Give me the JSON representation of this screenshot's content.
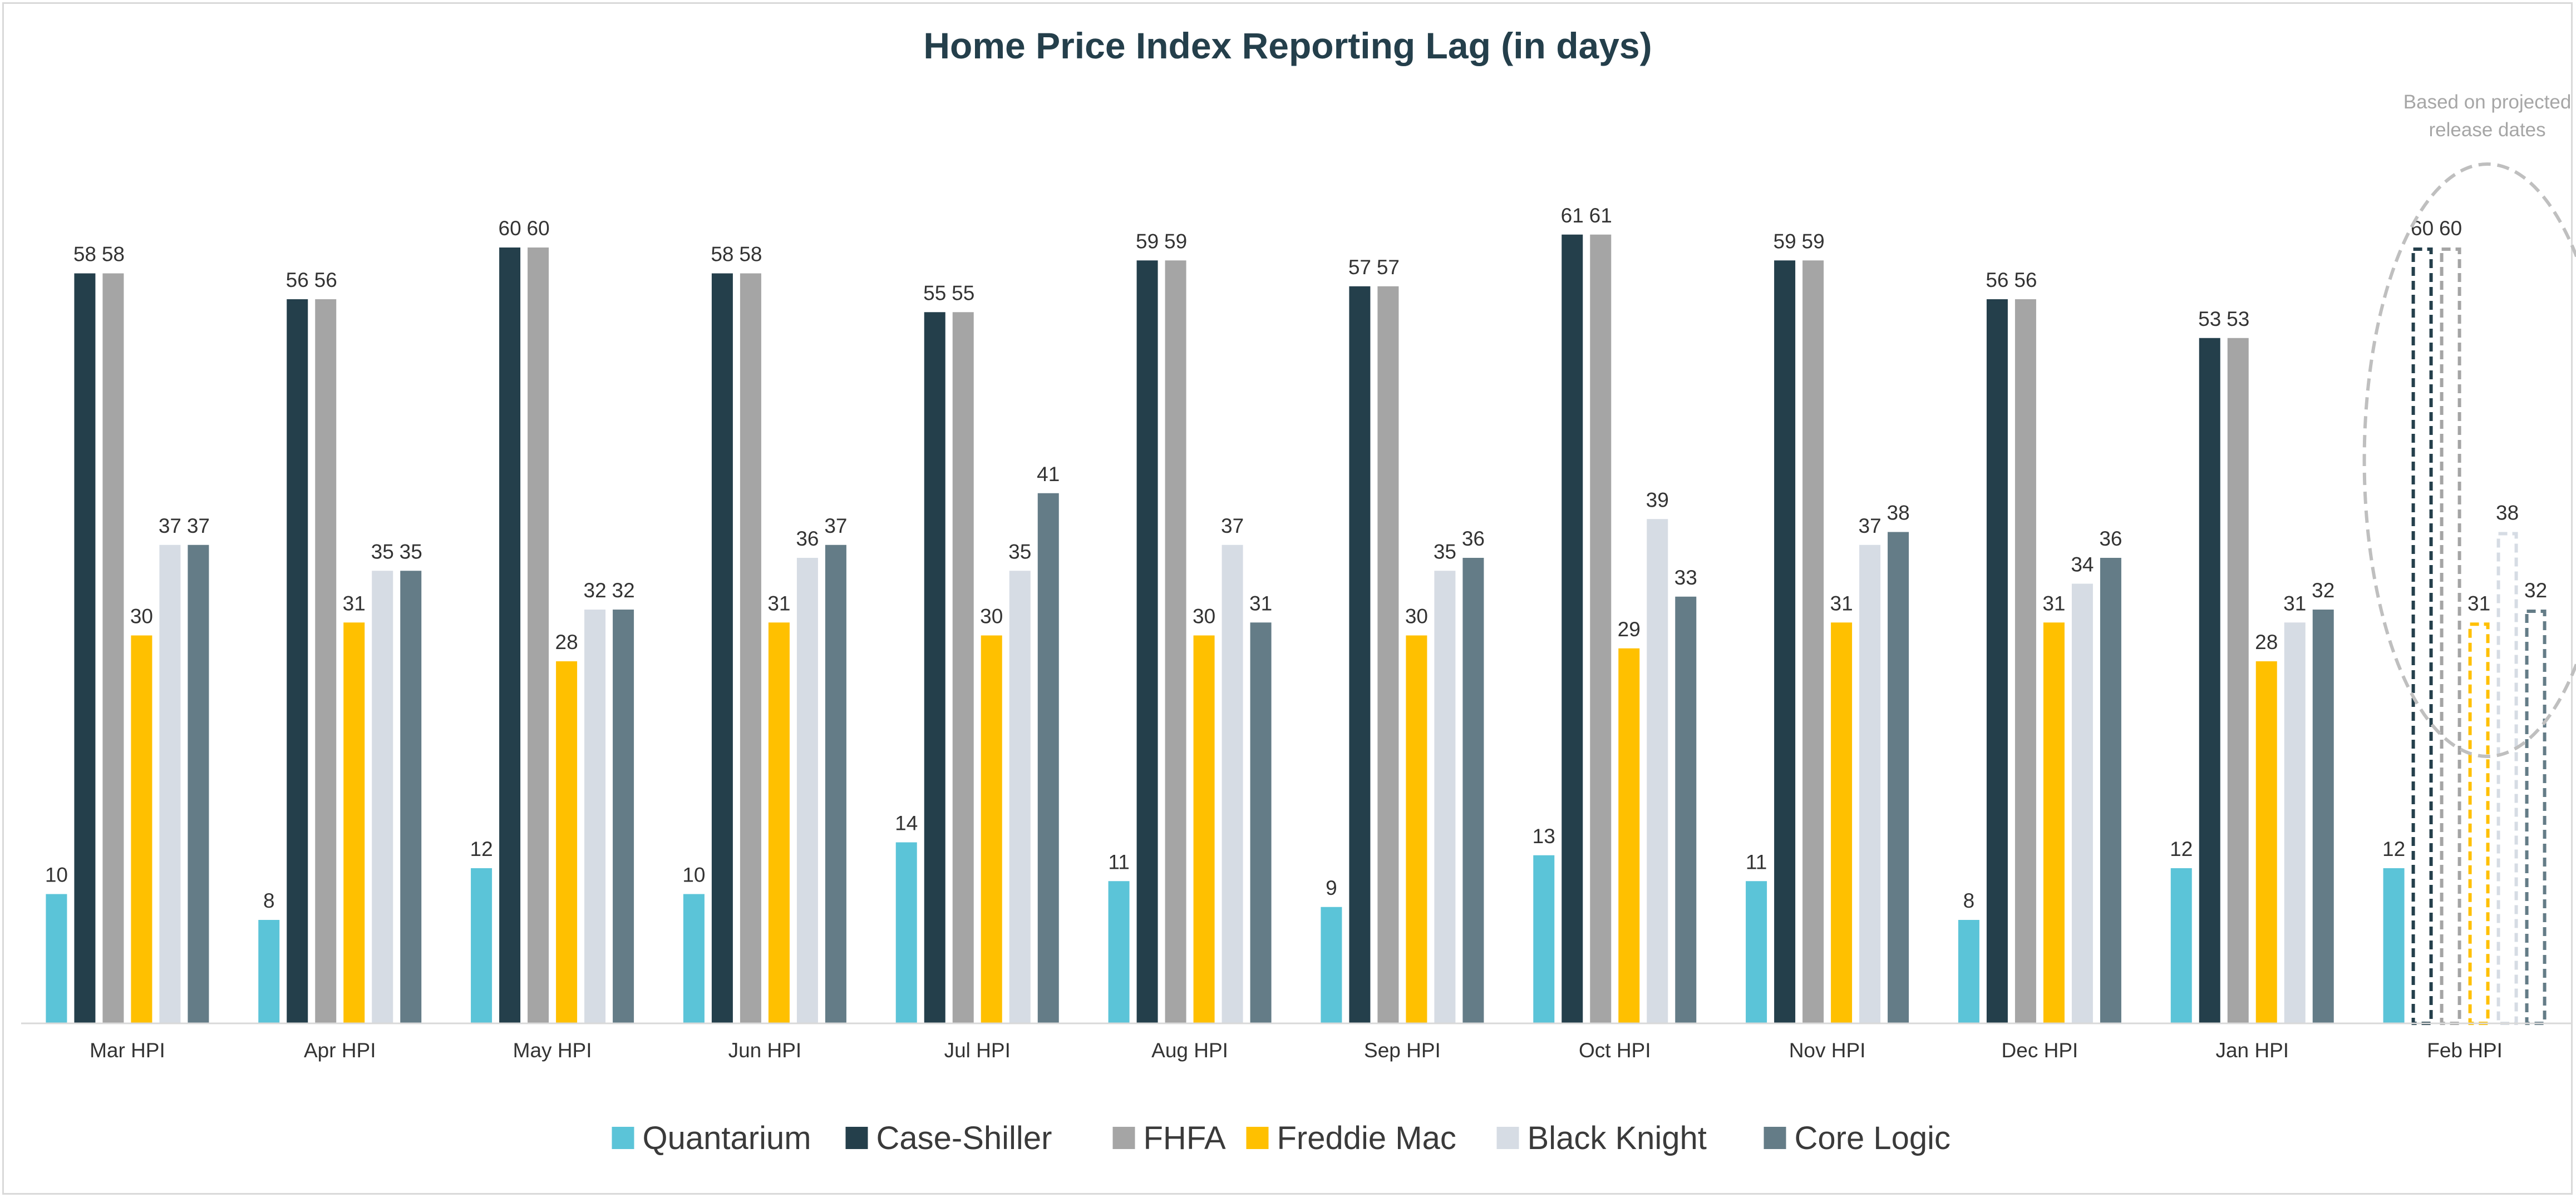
{
  "chart_data": {
    "type": "bar",
    "title": "Home Price Index Reporting Lag (in days)",
    "xlabel": "",
    "ylabel": "",
    "ylim": [
      0,
      65
    ],
    "grid": false,
    "legend_position": "bottom",
    "categories": [
      "Mar HPI",
      "Apr HPI",
      "May HPI",
      "Jun HPI",
      "Jul HPI",
      "Aug HPI",
      "Sep HPI",
      "Oct HPI",
      "Nov HPI",
      "Dec HPI",
      "Jan HPI",
      "Feb HPI"
    ],
    "series": [
      {
        "name": "Quantarium",
        "color": "#5bc4d8",
        "values": [
          10,
          8,
          12,
          10,
          14,
          11,
          9,
          13,
          11,
          8,
          12,
          12
        ]
      },
      {
        "name": "Case-Shiller",
        "color": "#243f4b",
        "values": [
          58,
          56,
          60,
          58,
          55,
          59,
          57,
          61,
          59,
          56,
          53,
          60
        ]
      },
      {
        "name": "FHFA",
        "color": "#a5a5a5",
        "values": [
          58,
          56,
          60,
          58,
          55,
          59,
          57,
          61,
          59,
          56,
          53,
          60
        ]
      },
      {
        "name": "Freddie Mac",
        "color": "#ffc000",
        "values": [
          30,
          31,
          28,
          31,
          30,
          30,
          30,
          29,
          31,
          31,
          28,
          31
        ]
      },
      {
        "name": "Black Knight",
        "color": "#d6dce4",
        "values": [
          37,
          35,
          32,
          36,
          35,
          37,
          35,
          39,
          37,
          34,
          31,
          38
        ]
      },
      {
        "name": "Core Logic",
        "color": "#647c87",
        "values": [
          37,
          35,
          32,
          37,
          41,
          31,
          36,
          33,
          38,
          36,
          32,
          32
        ]
      }
    ],
    "projected": {
      "category": "Feb HPI",
      "series": [
        "Case-Shiller",
        "FHFA",
        "Freddie Mac",
        "Black Knight",
        "Core Logic"
      ],
      "annotation": "Based on projected release dates"
    }
  }
}
